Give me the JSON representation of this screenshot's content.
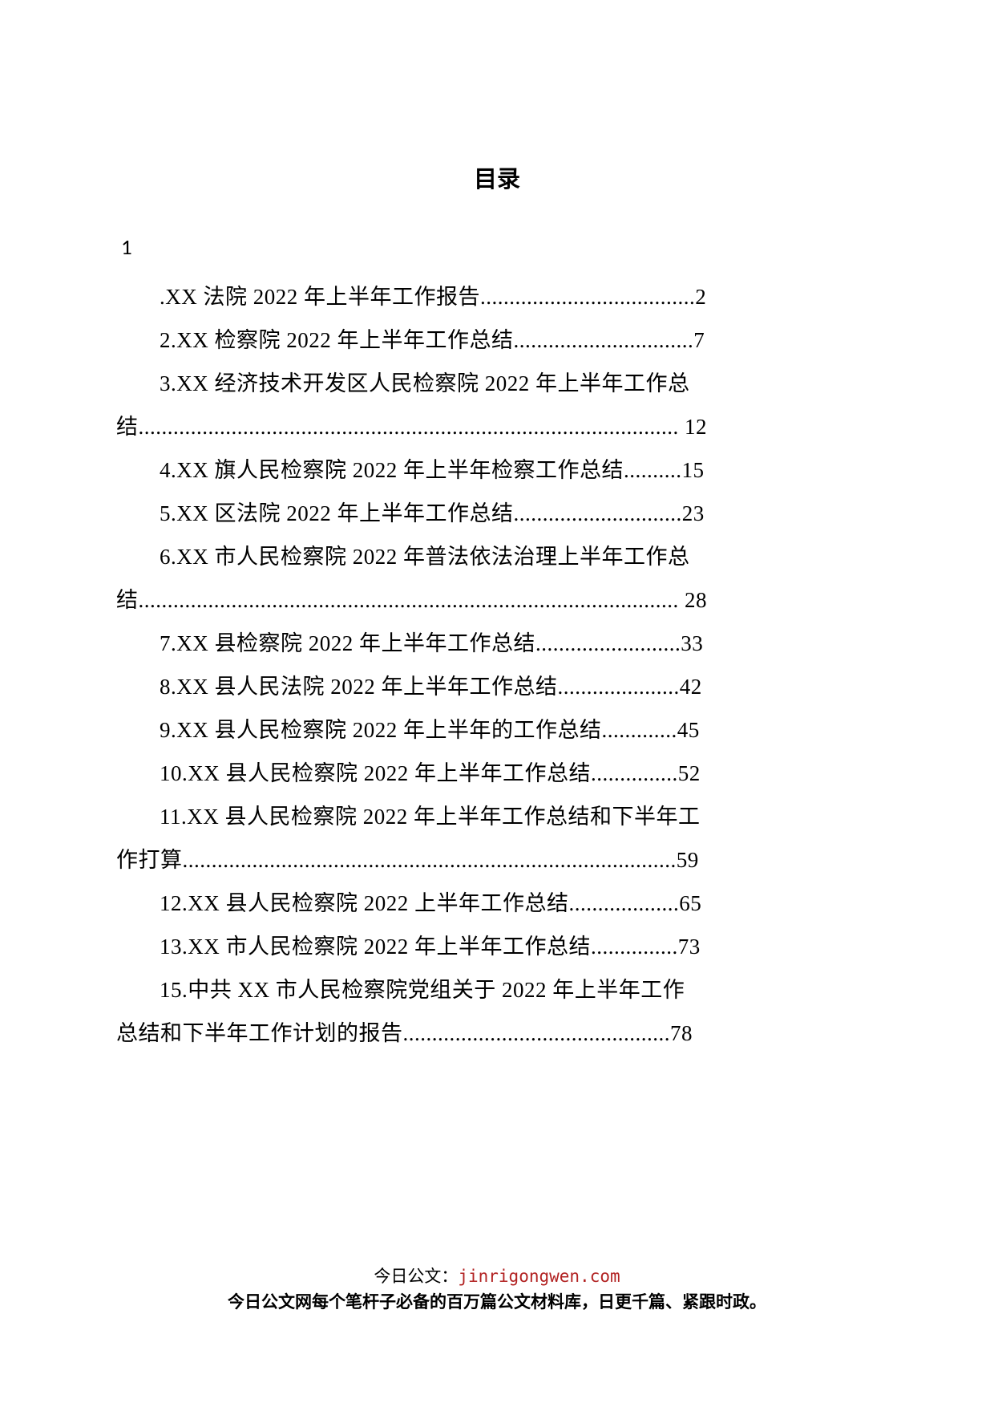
{
  "title": "目录",
  "first_number": "1",
  "toc": [
    {
      "indent": true,
      "text": ".XX 法院 2022 年上半年工作报告.....................................2"
    },
    {
      "indent": true,
      "text": "2.XX 检察院 2022 年上半年工作总结...............................7"
    },
    {
      "indent": true,
      "text": "3.XX 经济技术开发区人民检察院 2022 年上半年工作总"
    },
    {
      "indent": false,
      "text": "结............................................................................................. 12"
    },
    {
      "indent": true,
      "text": "4.XX 旗人民检察院 2022 年上半年检察工作总结..........15"
    },
    {
      "indent": true,
      "text": "5.XX 区法院 2022 年上半年工作总结.............................23"
    },
    {
      "indent": true,
      "text": "6.XX 市人民检察院 2022 年普法依法治理上半年工作总"
    },
    {
      "indent": false,
      "text": "结............................................................................................. 28"
    },
    {
      "indent": true,
      "text": "7.XX 县检察院 2022 年上半年工作总结.........................33"
    },
    {
      "indent": true,
      "text": "8.XX 县人民法院 2022 年上半年工作总结.....................42"
    },
    {
      "indent": true,
      "text": "9.XX 县人民检察院 2022 年上半年的工作总结.............45"
    },
    {
      "indent": true,
      "text": "10.XX 县人民检察院 2022 年上半年工作总结...............52"
    },
    {
      "indent": true,
      "text": "11.XX 县人民检察院 2022 年上半年工作总结和下半年工"
    },
    {
      "indent": false,
      "text": "作打算.....................................................................................59"
    },
    {
      "indent": true,
      "text": "12.XX 县人民检察院 2022 上半年工作总结...................65"
    },
    {
      "indent": true,
      "text": "13.XX 市人民检察院 2022 年上半年工作总结...............73"
    },
    {
      "indent": true,
      "text": "15.中共 XX 市人民检察院党组关于 2022 年上半年工作"
    },
    {
      "indent": false,
      "text": "总结和下半年工作计划的报告..............................................78"
    }
  ],
  "footer": {
    "label": "今日公文：",
    "url": "jinrigongwen.com",
    "line2": "今日公文网每个笔杆子必备的百万篇公文材料库，日更千篇、紧跟时政。"
  }
}
